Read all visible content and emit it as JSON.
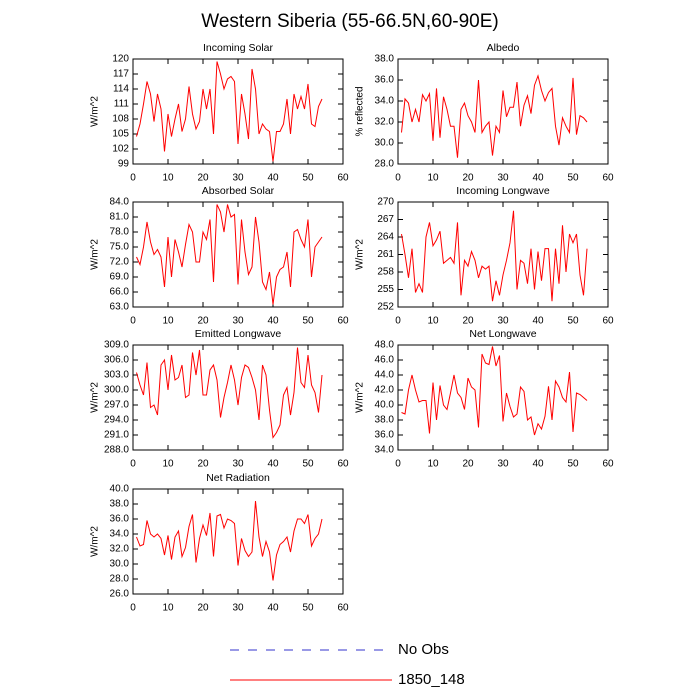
{
  "title": "Western Siberia (55-66.5N,60-90E)",
  "legend": [
    {
      "name": "No Obs",
      "color": "#3333cc",
      "dashed": true
    },
    {
      "name": "1850_148",
      "color": "#ff0000",
      "dashed": false
    }
  ],
  "chart_data": [
    {
      "type": "line",
      "title": "Incoming Solar",
      "y_label": "W/m^2",
      "color": "#ff0000",
      "x": [
        1,
        2,
        3,
        4,
        5,
        6,
        7,
        8,
        9,
        10,
        11,
        12,
        13,
        14,
        15,
        16,
        17,
        18,
        19,
        20,
        21,
        22,
        23,
        24,
        25,
        26,
        27,
        28,
        29,
        30,
        31,
        32,
        33,
        34,
        35,
        36,
        37,
        38,
        39,
        40,
        41,
        42,
        43,
        44,
        45,
        46,
        47,
        48,
        49,
        50,
        51,
        52,
        53,
        54
      ],
      "values": [
        104.5,
        107,
        111,
        115.5,
        113,
        107.5,
        113,
        110,
        101.5,
        109,
        104.5,
        108,
        111,
        105.5,
        108,
        114.5,
        109,
        106,
        107.5,
        114,
        110,
        114,
        105,
        119.5,
        117,
        114,
        116,
        116.5,
        115.5,
        103,
        113,
        109,
        104,
        118,
        114,
        105,
        107,
        106,
        105.5,
        99.5,
        105.5,
        105.5,
        107,
        112,
        105,
        113,
        110,
        112.5,
        110,
        115,
        107,
        106.5,
        110.5,
        112
      ],
      "xlim": [
        0,
        60
      ],
      "xticks": [
        0,
        10,
        20,
        30,
        40,
        50,
        60
      ],
      "ylim": [
        99,
        120
      ],
      "yticks": [
        99,
        102,
        105,
        108,
        111,
        114,
        117,
        120
      ]
    },
    {
      "type": "line",
      "title": "Albedo",
      "y_label": "% reflected",
      "color": "#ff0000",
      "x": [
        1,
        2,
        3,
        4,
        5,
        6,
        7,
        8,
        9,
        10,
        11,
        12,
        13,
        14,
        15,
        16,
        17,
        18,
        19,
        20,
        21,
        22,
        23,
        24,
        25,
        26,
        27,
        28,
        29,
        30,
        31,
        32,
        33,
        34,
        35,
        36,
        37,
        38,
        39,
        40,
        41,
        42,
        43,
        44,
        45,
        46,
        47,
        48,
        49,
        50,
        51,
        52,
        53,
        54
      ],
      "values": [
        31,
        34.2,
        33.8,
        32,
        33.2,
        32,
        34.6,
        34,
        34.7,
        30.2,
        35.2,
        30.5,
        34.4,
        33.2,
        31.6,
        31.6,
        28.6,
        33.2,
        33.8,
        32.6,
        32,
        31,
        36,
        31,
        31.6,
        32,
        28.8,
        31.6,
        31,
        35,
        32.5,
        33.4,
        33.4,
        35.8,
        31.6,
        33.6,
        34.5,
        32.8,
        35.5,
        36.4,
        35,
        34,
        34.8,
        35.2,
        31.6,
        29.8,
        32.4,
        31.6,
        31,
        36.2,
        30.8,
        32.6,
        32.4,
        32
      ],
      "xlim": [
        0,
        60
      ],
      "xticks": [
        0,
        10,
        20,
        30,
        40,
        50,
        60
      ],
      "ylim": [
        28,
        38
      ],
      "yticks": [
        {
          "value": 28,
          "label": "28.0"
        },
        {
          "value": 30,
          "label": "30.0"
        },
        {
          "value": 32,
          "label": "32.0"
        },
        {
          "value": 34,
          "label": "34.0"
        },
        {
          "value": 36,
          "label": "36.0"
        },
        {
          "value": 38,
          "label": "38.0"
        }
      ]
    },
    {
      "type": "line",
      "title": "Absorbed Solar",
      "y_label": "W/m^2",
      "color": "#ff0000",
      "x": [
        1,
        2,
        3,
        4,
        5,
        6,
        7,
        8,
        9,
        10,
        11,
        12,
        13,
        14,
        15,
        16,
        17,
        18,
        19,
        20,
        21,
        22,
        23,
        24,
        25,
        26,
        27,
        28,
        29,
        30,
        31,
        32,
        33,
        34,
        35,
        36,
        37,
        38,
        39,
        40,
        41,
        42,
        43,
        44,
        45,
        46,
        47,
        48,
        49,
        50,
        51,
        52,
        53,
        54
      ],
      "values": [
        73,
        71.5,
        75,
        80,
        76,
        73.5,
        74.5,
        73,
        67,
        77,
        69,
        76.5,
        74,
        71,
        75.5,
        79.5,
        78,
        72,
        72,
        78,
        76.5,
        80.5,
        68,
        83.5,
        82,
        78,
        83.5,
        81,
        81.5,
        67.5,
        80.5,
        74,
        69.5,
        71,
        81,
        76,
        68,
        66.5,
        70,
        63.5,
        69,
        70.5,
        71,
        74,
        67,
        78,
        78.5,
        76.5,
        75,
        80.5,
        69,
        75,
        76,
        77
      ],
      "xlim": [
        0,
        60
      ],
      "xticks": [
        0,
        10,
        20,
        30,
        40,
        50,
        60
      ],
      "ylim": [
        63,
        84
      ],
      "yticks": [
        {
          "value": 63,
          "label": "63.0"
        },
        {
          "value": 66,
          "label": "66.0"
        },
        {
          "value": 69,
          "label": "69.0"
        },
        {
          "value": 72,
          "label": "72.0"
        },
        {
          "value": 75,
          "label": "75.0"
        },
        {
          "value": 78,
          "label": "78.0"
        },
        {
          "value": 81,
          "label": "81.0"
        },
        {
          "value": 84,
          "label": "84.0"
        }
      ]
    },
    {
      "type": "line",
      "title": "Incoming Longwave",
      "y_label": "W/m^2",
      "color": "#ff0000",
      "x": [
        1,
        2,
        3,
        4,
        5,
        6,
        7,
        8,
        9,
        10,
        11,
        12,
        13,
        14,
        15,
        16,
        17,
        18,
        19,
        20,
        21,
        22,
        23,
        24,
        25,
        26,
        27,
        28,
        29,
        30,
        31,
        32,
        33,
        34,
        35,
        36,
        37,
        38,
        39,
        40,
        41,
        42,
        43,
        44,
        45,
        46,
        47,
        48,
        49,
        50,
        51,
        52,
        53,
        54
      ],
      "values": [
        264.5,
        261,
        257,
        262,
        254.5,
        256,
        254.5,
        264,
        266.5,
        262.5,
        263.5,
        265,
        259.5,
        260,
        260.5,
        259.5,
        266.5,
        254,
        260,
        259,
        261.5,
        260,
        257,
        259,
        258.5,
        259,
        253,
        256.5,
        254,
        257.5,
        260,
        263,
        268.5,
        255,
        260,
        259.5,
        256,
        262,
        255,
        261.5,
        256.5,
        262,
        262,
        253,
        262,
        256,
        266,
        258,
        264.5,
        263,
        264.5,
        257.5,
        254,
        262
      ],
      "xlim": [
        0,
        60
      ],
      "xticks": [
        0,
        10,
        20,
        30,
        40,
        50,
        60
      ],
      "ylim": [
        252,
        270
      ],
      "yticks": [
        252,
        255,
        258,
        261,
        264,
        267,
        270
      ]
    },
    {
      "type": "line",
      "title": "Emitted Longwave",
      "y_label": "W/m^2",
      "color": "#ff0000",
      "x": [
        1,
        2,
        3,
        4,
        5,
        6,
        7,
        8,
        9,
        10,
        11,
        12,
        13,
        14,
        15,
        16,
        17,
        18,
        19,
        20,
        21,
        22,
        23,
        24,
        25,
        26,
        27,
        28,
        29,
        30,
        31,
        32,
        33,
        34,
        35,
        36,
        37,
        38,
        39,
        40,
        41,
        42,
        43,
        44,
        45,
        46,
        47,
        48,
        49,
        50,
        51,
        52,
        53,
        54
      ],
      "values": [
        303.5,
        301,
        299,
        305.5,
        296.5,
        297,
        295,
        305,
        306,
        300,
        307,
        302,
        302.5,
        305,
        298.5,
        299,
        307.5,
        303,
        308,
        299,
        299,
        304,
        305,
        302,
        294.5,
        298.5,
        301.5,
        305,
        302,
        297,
        302.5,
        305,
        304.5,
        302.5,
        300,
        294,
        305,
        303,
        296,
        290.5,
        291.5,
        293,
        299,
        300.5,
        295,
        299.5,
        308.5,
        301.5,
        300.5,
        307,
        301,
        299.5,
        295.5,
        303
      ],
      "xlim": [
        0,
        60
      ],
      "xticks": [
        0,
        10,
        20,
        30,
        40,
        50,
        60
      ],
      "ylim": [
        288,
        309
      ],
      "yticks": [
        {
          "value": 288,
          "label": "288.0"
        },
        {
          "value": 291,
          "label": "291.0"
        },
        {
          "value": 294,
          "label": "294.0"
        },
        {
          "value": 297,
          "label": "297.0"
        },
        {
          "value": 300,
          "label": "300.0"
        },
        {
          "value": 303,
          "label": "303.0"
        },
        {
          "value": 306,
          "label": "306.0"
        },
        {
          "value": 309,
          "label": "309.0"
        }
      ]
    },
    {
      "type": "line",
      "title": "Net Longwave",
      "y_label": "W/m^2",
      "color": "#ff0000",
      "x": [
        1,
        2,
        3,
        4,
        5,
        6,
        7,
        8,
        9,
        10,
        11,
        12,
        13,
        14,
        15,
        16,
        17,
        18,
        19,
        20,
        21,
        22,
        23,
        24,
        25,
        26,
        27,
        28,
        29,
        30,
        31,
        32,
        33,
        34,
        35,
        36,
        37,
        38,
        39,
        40,
        41,
        42,
        43,
        44,
        45,
        46,
        47,
        48,
        49,
        50,
        51,
        52,
        53,
        54
      ],
      "values": [
        39,
        38.8,
        42,
        44,
        42,
        40.4,
        40.6,
        40.6,
        36.2,
        43,
        38,
        42.6,
        40,
        39.4,
        41.6,
        44,
        41.6,
        41,
        39.4,
        43.6,
        42.4,
        42,
        37,
        46.8,
        45.6,
        45.4,
        47.8,
        45.2,
        46.6,
        37.8,
        41.6,
        39.8,
        38.4,
        38.8,
        42.4,
        41.8,
        38,
        38.4,
        36,
        37.5,
        36.8,
        38.5,
        42.5,
        38,
        43.2,
        42.4,
        41,
        40.4,
        44.4,
        36.4,
        41.6,
        41.4,
        41,
        40.6
      ],
      "xlim": [
        0,
        60
      ],
      "xticks": [
        0,
        10,
        20,
        30,
        40,
        50,
        60
      ],
      "ylim": [
        34,
        48
      ],
      "yticks": [
        {
          "value": 34,
          "label": "34.0"
        },
        {
          "value": 36,
          "label": "36.0"
        },
        {
          "value": 38,
          "label": "38.0"
        },
        {
          "value": 40,
          "label": "40.0"
        },
        {
          "value": 42,
          "label": "42.0"
        },
        {
          "value": 44,
          "label": "44.0"
        },
        {
          "value": 46,
          "label": "46.0"
        },
        {
          "value": 48,
          "label": "48.0"
        }
      ]
    },
    {
      "type": "line",
      "title": "Net Radiation",
      "y_label": "W/m^2",
      "color": "#ff0000",
      "x": [
        1,
        2,
        3,
        4,
        5,
        6,
        7,
        8,
        9,
        10,
        11,
        12,
        13,
        14,
        15,
        16,
        17,
        18,
        19,
        20,
        21,
        22,
        23,
        24,
        25,
        26,
        27,
        28,
        29,
        30,
        31,
        32,
        33,
        34,
        35,
        36,
        37,
        38,
        39,
        40,
        41,
        42,
        43,
        44,
        45,
        46,
        47,
        48,
        49,
        50,
        51,
        52,
        53,
        54
      ],
      "values": [
        33.6,
        32.4,
        32.6,
        35.8,
        34,
        33.6,
        34,
        33.4,
        31.2,
        33.8,
        30.6,
        33.6,
        34.4,
        31,
        32.2,
        35,
        36.6,
        30.2,
        33.4,
        35.2,
        33.8,
        36.8,
        31,
        36.4,
        36.6,
        34.8,
        36,
        35.8,
        35.4,
        29.8,
        33.4,
        31.8,
        31,
        31.6,
        38.4,
        33.6,
        31,
        33,
        31.6,
        27.8,
        31.2,
        32.6,
        33,
        33.6,
        31.6,
        34.4,
        36,
        36,
        35.4,
        36.6,
        32.4,
        33.4,
        34,
        36
      ],
      "xlim": [
        0,
        60
      ],
      "xticks": [
        0,
        10,
        20,
        30,
        40,
        50,
        60
      ],
      "ylim": [
        26,
        40
      ],
      "yticks": [
        {
          "value": 26,
          "label": "26.0"
        },
        {
          "value": 28,
          "label": "28.0"
        },
        {
          "value": 30,
          "label": "30.0"
        },
        {
          "value": 32,
          "label": "32.0"
        },
        {
          "value": 34,
          "label": "34.0"
        },
        {
          "value": 36,
          "label": "36.0"
        },
        {
          "value": 38,
          "label": "38.0"
        },
        {
          "value": 40,
          "label": "40.0"
        }
      ]
    }
  ]
}
